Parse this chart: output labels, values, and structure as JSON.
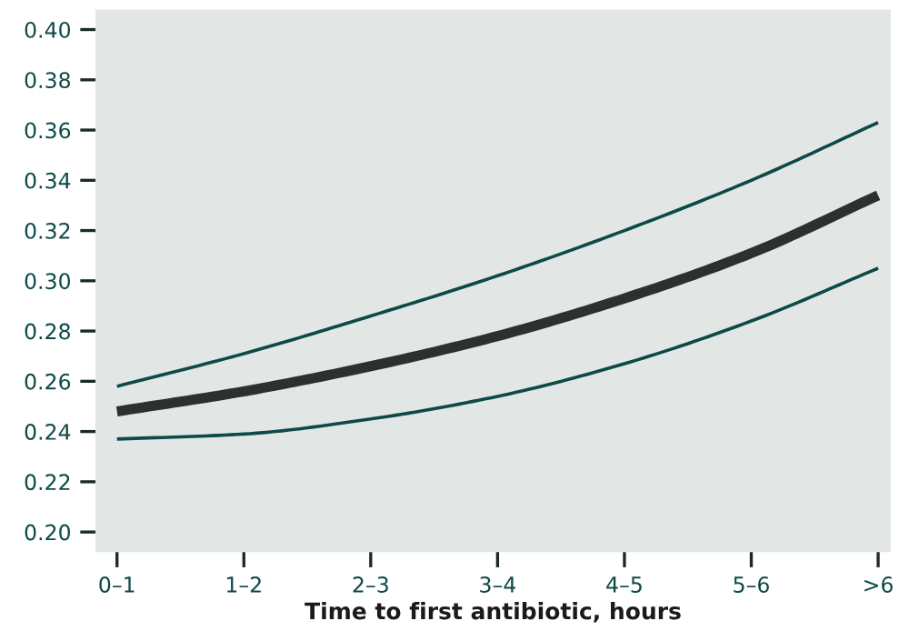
{
  "chart_data": {
    "type": "line",
    "xlabel": "Time to first antibiotic, hours",
    "categories": [
      "0–1",
      "1–2",
      "2–3",
      "3–4",
      "4–5",
      "5–6",
      ">6"
    ],
    "series": [
      {
        "color": "#0d4a47",
        "values": [
          0.258,
          0.271,
          0.286,
          0.302,
          0.32,
          0.34,
          0.363
        ]
      },
      {
        "color": "#2d302f",
        "values": [
          0.248,
          0.256,
          0.266,
          0.278,
          0.293,
          0.311,
          0.334
        ]
      },
      {
        "color": "#0d4a47",
        "values": [
          0.237,
          0.239,
          0.245,
          0.254,
          0.267,
          0.284,
          0.305
        ]
      }
    ],
    "ylim": [
      0.192,
      0.408
    ],
    "yticks": [
      {
        "value": 0.2,
        "label": "0.20"
      },
      {
        "value": 0.22,
        "label": "0.22"
      },
      {
        "value": 0.24,
        "label": "0.24"
      },
      {
        "value": 0.26,
        "label": "0.26"
      },
      {
        "value": 0.28,
        "label": "0.28"
      },
      {
        "value": 0.3,
        "label": "0.30"
      },
      {
        "value": 0.32,
        "label": "0.32"
      },
      {
        "value": 0.34,
        "label": "0.34"
      },
      {
        "value": 0.36,
        "label": "0.36"
      },
      {
        "value": 0.38,
        "label": "0.38"
      },
      {
        "value": 0.4,
        "label": "0.40"
      }
    ],
    "grid": false,
    "marker": "none",
    "line_style": "solid"
  }
}
